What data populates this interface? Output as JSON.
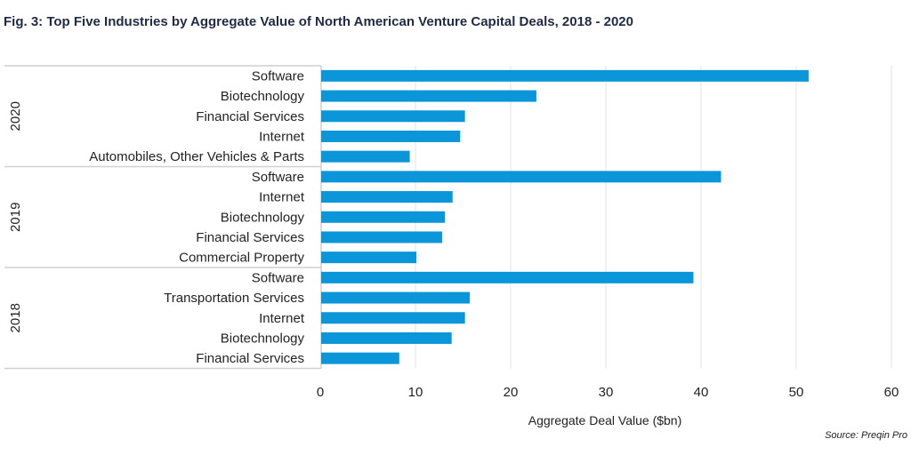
{
  "title": "Fig. 3: Top Five Industries by Aggregate Value of North American Venture Capital Deals, 2018 - 2020",
  "source": "Source: Preqin Pro",
  "chart_data": {
    "type": "bar",
    "orientation": "horizontal",
    "xlabel": "Aggregate Deal Value ($bn)",
    "xlim": [
      0,
      60
    ],
    "xticks": [
      0,
      10,
      20,
      30,
      40,
      50,
      60
    ],
    "grid": true,
    "bar_color": "#0a96d8",
    "groups": [
      {
        "name": "2020",
        "categories": [
          "Software",
          "Biotechnology",
          "Financial Services",
          "Internet",
          "Automobiles, Other Vehicles & Parts"
        ],
        "values": [
          51.3,
          22.7,
          15.2,
          14.7,
          9.4
        ]
      },
      {
        "name": "2019",
        "categories": [
          "Software",
          "Internet",
          "Biotechnology",
          "Financial Services",
          "Commercial Property"
        ],
        "values": [
          42.1,
          13.9,
          13.1,
          12.8,
          10.1
        ]
      },
      {
        "name": "2018",
        "categories": [
          "Software",
          "Transportation Services",
          "Internet",
          "Biotechnology",
          "Financial Services"
        ],
        "values": [
          39.2,
          15.7,
          15.2,
          13.8,
          8.3
        ]
      }
    ]
  }
}
